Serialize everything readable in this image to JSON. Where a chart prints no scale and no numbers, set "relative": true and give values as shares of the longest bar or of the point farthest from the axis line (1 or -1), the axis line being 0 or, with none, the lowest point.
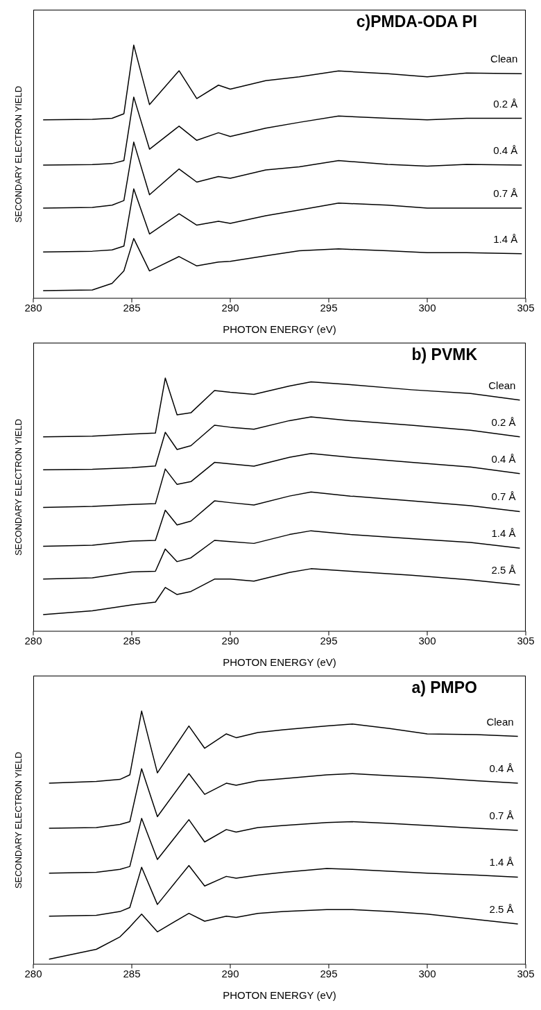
{
  "chart_data": [
    {
      "type": "line",
      "title": "c)PMDA-ODA PI",
      "xlabel": "PHOTON ENERGY (eV)",
      "ylabel": "SECONDARY ELECTRON YIELD",
      "relative": true,
      "legend": false,
      "marker": "none",
      "xlim": [
        280,
        305
      ],
      "xticks": [
        280,
        285,
        290,
        295,
        300,
        305
      ],
      "x": [
        280.5,
        283,
        284,
        284.6,
        285.1,
        285.9,
        287.4,
        288.3,
        289.4,
        290,
        291.8,
        293.5,
        295.5,
        298,
        300,
        302,
        304.8
      ],
      "series": [
        {
          "name": "Clean",
          "color": "#000000",
          "values": [
            0.705,
            0.707,
            0.711,
            0.729,
            1.0,
            0.765,
            0.899,
            0.789,
            0.842,
            0.826,
            0.86,
            0.875,
            0.898,
            0.887,
            0.875,
            0.89,
            0.887
          ]
        },
        {
          "name": "0.2 Å",
          "color": "#000000",
          "values": [
            0.526,
            0.528,
            0.532,
            0.544,
            0.795,
            0.589,
            0.68,
            0.624,
            0.654,
            0.639,
            0.672,
            0.695,
            0.72,
            0.711,
            0.705,
            0.711,
            0.711
          ]
        },
        {
          "name": "0.4 Å",
          "color": "#000000",
          "values": [
            0.356,
            0.359,
            0.368,
            0.386,
            0.617,
            0.409,
            0.511,
            0.459,
            0.481,
            0.474,
            0.507,
            0.519,
            0.544,
            0.529,
            0.522,
            0.529,
            0.526
          ]
        },
        {
          "name": "0.7 Å",
          "color": "#000000",
          "values": [
            0.183,
            0.186,
            0.191,
            0.206,
            0.432,
            0.254,
            0.334,
            0.289,
            0.304,
            0.296,
            0.326,
            0.349,
            0.376,
            0.368,
            0.356,
            0.356,
            0.356
          ]
        },
        {
          "name": "1.4 Å",
          "color": "#000000",
          "values": [
            0.03,
            0.033,
            0.059,
            0.108,
            0.236,
            0.108,
            0.165,
            0.128,
            0.143,
            0.146,
            0.168,
            0.188,
            0.195,
            0.188,
            0.18,
            0.18,
            0.176
          ]
        }
      ]
    },
    {
      "type": "line",
      "title": "b) PVMK",
      "xlabel": "PHOTON ENERGY (eV)",
      "ylabel": "SECONDARY ELECTRON YIELD",
      "relative": true,
      "legend": false,
      "marker": "none",
      "xlim": [
        280,
        305
      ],
      "xticks": [
        280,
        285,
        290,
        295,
        300,
        305
      ],
      "x": [
        280.5,
        283,
        285,
        286.2,
        286.7,
        287.3,
        288,
        289.2,
        290,
        291.2,
        293,
        294.1,
        296.1,
        299.2,
        302.2,
        304.7
      ],
      "series": [
        {
          "name": "Clean",
          "color": "#000000",
          "values": [
            0.768,
            0.771,
            0.779,
            0.783,
            1.0,
            0.855,
            0.863,
            0.951,
            0.944,
            0.936,
            0.969,
            0.985,
            0.974,
            0.954,
            0.939,
            0.913
          ]
        },
        {
          "name": "0.2 Å",
          "color": "#000000",
          "values": [
            0.638,
            0.64,
            0.646,
            0.653,
            0.786,
            0.718,
            0.733,
            0.814,
            0.806,
            0.798,
            0.832,
            0.847,
            0.832,
            0.814,
            0.794,
            0.768
          ]
        },
        {
          "name": "0.4 Å",
          "color": "#000000",
          "values": [
            0.489,
            0.493,
            0.501,
            0.504,
            0.641,
            0.58,
            0.591,
            0.667,
            0.661,
            0.652,
            0.687,
            0.702,
            0.687,
            0.667,
            0.649,
            0.623
          ]
        },
        {
          "name": "0.7 Å",
          "color": "#000000",
          "values": [
            0.336,
            0.34,
            0.356,
            0.359,
            0.478,
            0.42,
            0.435,
            0.515,
            0.508,
            0.499,
            0.534,
            0.55,
            0.534,
            0.515,
            0.496,
            0.473
          ]
        },
        {
          "name": "1.4 Å",
          "color": "#000000",
          "values": [
            0.206,
            0.211,
            0.234,
            0.237,
            0.325,
            0.275,
            0.29,
            0.359,
            0.354,
            0.347,
            0.382,
            0.397,
            0.382,
            0.366,
            0.351,
            0.328
          ]
        },
        {
          "name": "2.5 Å",
          "color": "#000000",
          "values": [
            0.066,
            0.081,
            0.104,
            0.115,
            0.173,
            0.145,
            0.157,
            0.206,
            0.206,
            0.198,
            0.232,
            0.247,
            0.237,
            0.221,
            0.203,
            0.183
          ]
        }
      ]
    },
    {
      "type": "line",
      "title": "a) PMPO",
      "xlabel": "PHOTON ENERGY (eV)",
      "ylabel": "SECONDARY ELECTRON YIELD",
      "relative": true,
      "legend": false,
      "marker": "none",
      "xlim": [
        280,
        305
      ],
      "xticks": [
        280,
        285,
        290,
        295,
        300,
        305
      ],
      "x": [
        280.8,
        283.2,
        284.4,
        284.9,
        285.5,
        286.3,
        287.9,
        288.7,
        289.8,
        290.3,
        291.4,
        292.7,
        294.9,
        296.2,
        298.1,
        300,
        302.5,
        304.6
      ],
      "series": [
        {
          "name": "Clean",
          "color": "#000000",
          "values": [
            0.715,
            0.722,
            0.73,
            0.748,
            1.0,
            0.756,
            0.941,
            0.853,
            0.91,
            0.895,
            0.915,
            0.926,
            0.941,
            0.949,
            0.931,
            0.91,
            0.907,
            0.9
          ]
        },
        {
          "name": "0.4 Å",
          "color": "#000000",
          "values": [
            0.537,
            0.54,
            0.552,
            0.563,
            0.772,
            0.583,
            0.753,
            0.671,
            0.715,
            0.707,
            0.725,
            0.733,
            0.748,
            0.753,
            0.745,
            0.738,
            0.725,
            0.715
          ]
        },
        {
          "name": "0.7 Å",
          "color": "#000000",
          "values": [
            0.36,
            0.363,
            0.375,
            0.386,
            0.576,
            0.414,
            0.571,
            0.483,
            0.532,
            0.522,
            0.54,
            0.548,
            0.56,
            0.563,
            0.556,
            0.548,
            0.537,
            0.529
          ]
        },
        {
          "name": "1.4 Å",
          "color": "#000000",
          "values": [
            0.19,
            0.193,
            0.208,
            0.224,
            0.383,
            0.236,
            0.39,
            0.309,
            0.347,
            0.34,
            0.352,
            0.363,
            0.378,
            0.375,
            0.367,
            0.36,
            0.352,
            0.344
          ]
        },
        {
          "name": "2.5 Å",
          "color": "#000000",
          "values": [
            0.02,
            0.059,
            0.108,
            0.147,
            0.198,
            0.128,
            0.201,
            0.17,
            0.19,
            0.185,
            0.201,
            0.208,
            0.216,
            0.216,
            0.208,
            0.198,
            0.177,
            0.159
          ]
        }
      ]
    }
  ]
}
